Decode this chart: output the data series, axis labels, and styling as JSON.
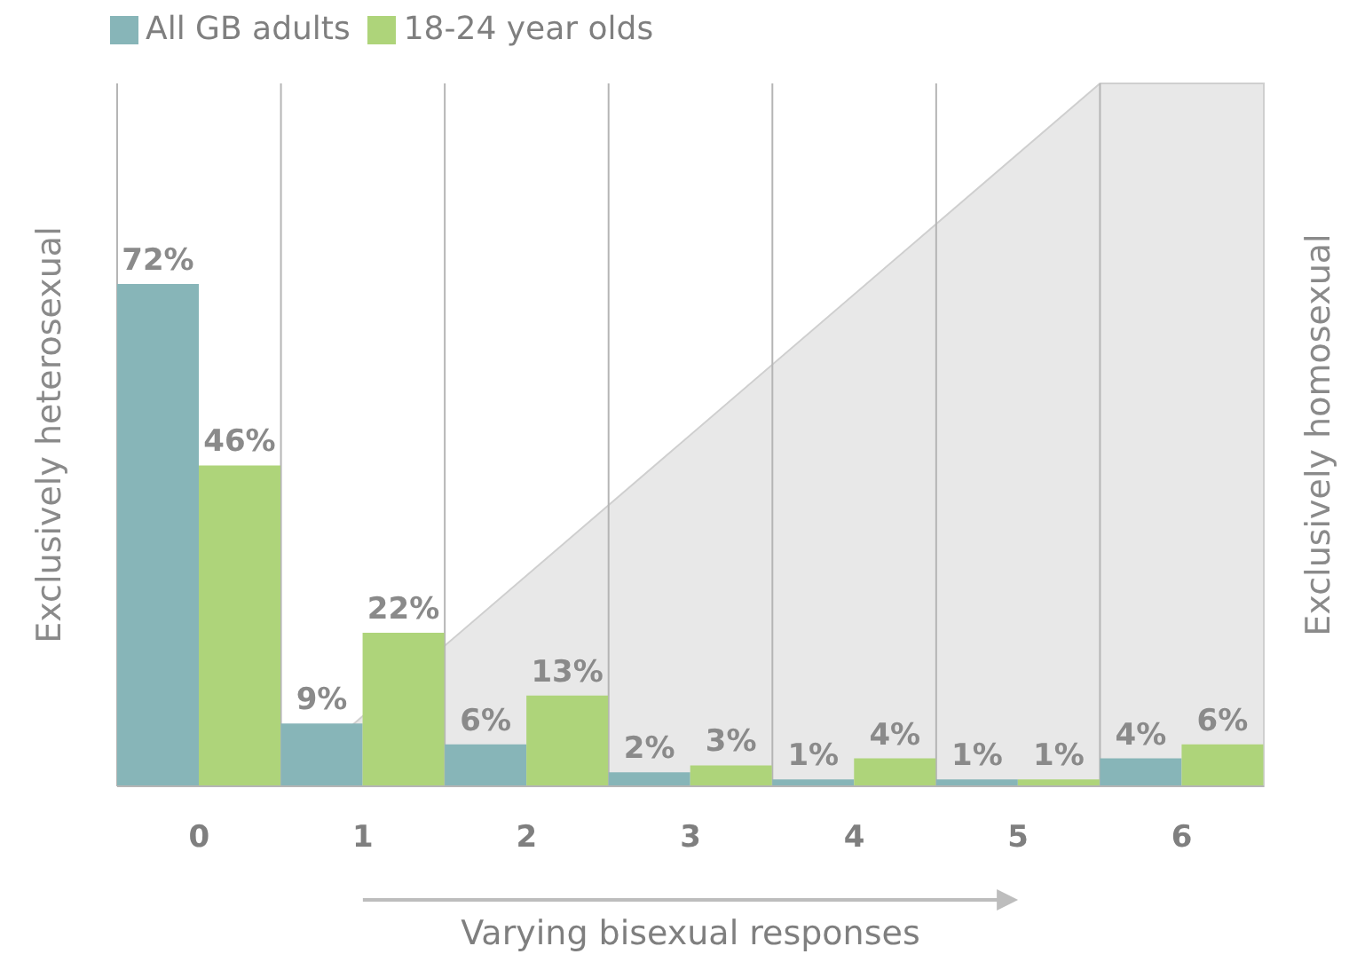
{
  "chart_data": {
    "type": "bar",
    "categories": [
      "0",
      "1",
      "2",
      "3",
      "4",
      "5",
      "6"
    ],
    "series": [
      {
        "name": "All GB adults",
        "color": "#87b5b8",
        "values": [
          72,
          9,
          6,
          2,
          1,
          1,
          4
        ],
        "value_labels": [
          "72%",
          "9%",
          "6%",
          "2%",
          "1%",
          "1%",
          "4%"
        ]
      },
      {
        "name": "18-24 year olds",
        "color": "#aed47a",
        "values": [
          46,
          22,
          13,
          3,
          4,
          1,
          6
        ],
        "value_labels": [
          "46%",
          "22%",
          "13%",
          "3%",
          "4%",
          "1%",
          "6%"
        ]
      }
    ],
    "ylim": [
      0,
      100
    ],
    "tick_labels": "x",
    "grid": "x",
    "legend": "top left",
    "xlabel": "Varying bisexual responses",
    "ylabel": "Exclusively heterosexual",
    "y2label": "Exclusively homosexual"
  }
}
